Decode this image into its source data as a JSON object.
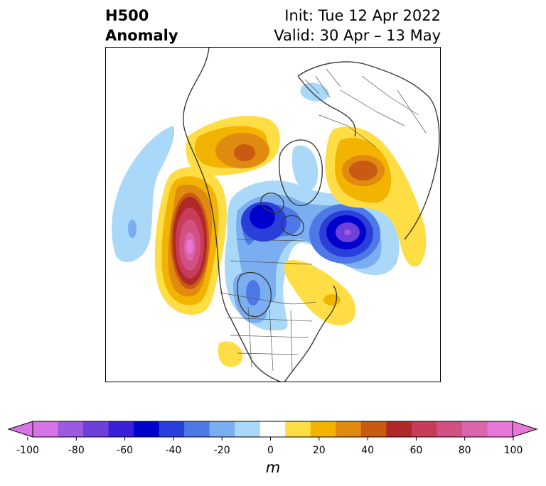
{
  "title": {
    "left_line1": "H500",
    "left_line2": "Anomaly",
    "right_line1": "Init: Tue 12 Apr 2022",
    "right_line2": "Valid: 30 Apr – 13 May"
  },
  "colorbar": {
    "units": "m",
    "ticks": [
      "-100",
      "-80",
      "-60",
      "-40",
      "-20",
      "0",
      "20",
      "40",
      "60",
      "80",
      "100"
    ],
    "levels": [
      -100,
      -90,
      -80,
      -70,
      -60,
      -50,
      -40,
      -30,
      -20,
      -10,
      10,
      20,
      30,
      40,
      50,
      60,
      70,
      80,
      90,
      100
    ],
    "colors": [
      "#d673e6",
      "#9d59e0",
      "#6e3fdb",
      "#3a1fd8",
      "#0000cc",
      "#2a3fd9",
      "#4e78e6",
      "#7aaef0",
      "#aad8f8",
      "#ffffff",
      "#ffdd44",
      "#f2b400",
      "#e08a10",
      "#c85a12",
      "#b02828",
      "#c83c5a",
      "#d25082",
      "#dc64aa",
      "#e878d8"
    ],
    "under_color": "#d673e6",
    "over_color": "#e878d8"
  },
  "map": {
    "projection": "north-polar-stereographic",
    "region": "Northern Hemisphere",
    "variable": "500 hPa geopotential height anomaly"
  }
}
